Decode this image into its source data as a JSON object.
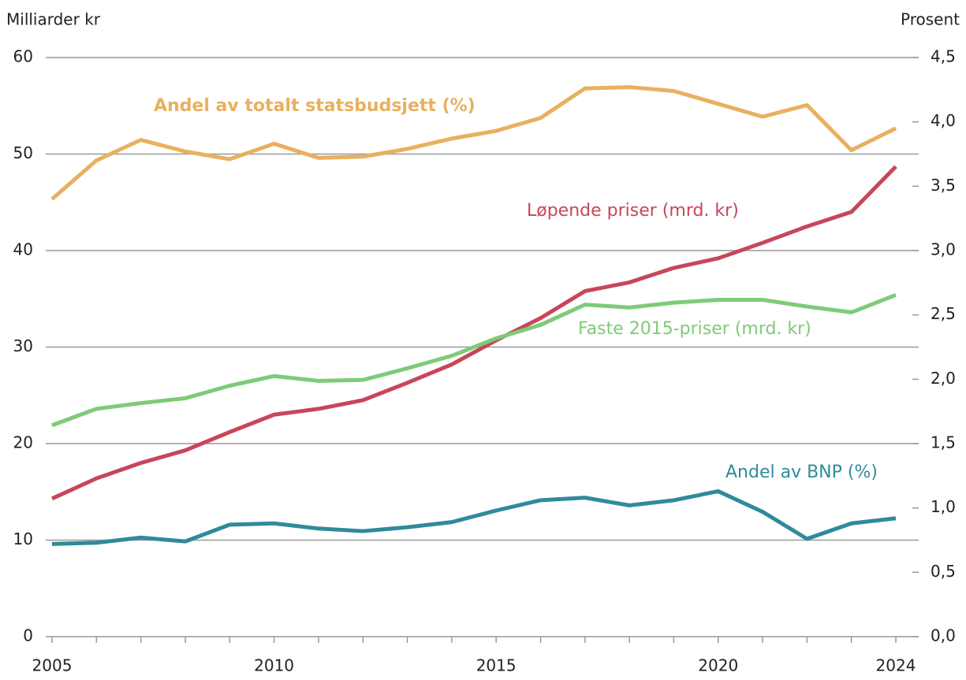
{
  "chart_data": {
    "type": "line",
    "ylabel": "Milliarder kr",
    "y2label": "Prosent",
    "x": [
      2005,
      2006,
      2007,
      2008,
      2009,
      2010,
      2011,
      2012,
      2013,
      2014,
      2015,
      2016,
      2017,
      2018,
      2019,
      2020,
      2021,
      2022,
      2023,
      2024
    ],
    "xlim": [
      2005,
      2024
    ],
    "xticks": [
      2005,
      2010,
      2015,
      2020,
      2024
    ],
    "ylim": [
      0,
      60
    ],
    "yticks": [
      0,
      10,
      20,
      30,
      40,
      50,
      60
    ],
    "y2lim": [
      0,
      4.5
    ],
    "y2ticks": [
      {
        "value": 0,
        "label": "0,0"
      },
      {
        "value": 0.5,
        "label": "0,5"
      },
      {
        "value": 1,
        "label": "1,0"
      },
      {
        "value": 1.5,
        "label": "1,5"
      },
      {
        "value": 2,
        "label": "2,0"
      },
      {
        "value": 2.5,
        "label": "2,5"
      },
      {
        "value": 3,
        "label": "3,0"
      },
      {
        "value": 3.5,
        "label": "3,5"
      },
      {
        "value": 4,
        "label": "4,0"
      },
      {
        "value": 4.5,
        "label": "4,5"
      }
    ],
    "grid": true,
    "series": [
      {
        "name": "Andel av totalt statsbudsjett (%)",
        "color": "#e8b060",
        "axis": "y2",
        "values": [
          3.4,
          3.7,
          3.86,
          3.77,
          3.71,
          3.83,
          3.72,
          3.73,
          3.79,
          3.87,
          3.93,
          4.03,
          4.26,
          4.27,
          4.24,
          4.14,
          4.04,
          4.13,
          3.78,
          3.95
        ]
      },
      {
        "name": "Løpende priser (mrd. kr)",
        "color": "#c8465a",
        "values": [
          14.3,
          16.4,
          18.0,
          19.3,
          21.2,
          23.0,
          23.6,
          24.5,
          26.3,
          28.2,
          30.7,
          33.0,
          35.8,
          36.7,
          38.2,
          39.2,
          40.8,
          42.5,
          44.0,
          48.7
        ]
      },
      {
        "name": "Faste 2015-priser (mrd. kr)",
        "color": "#7ecb77",
        "values": [
          21.9,
          23.6,
          24.2,
          24.7,
          26.0,
          27.0,
          26.5,
          26.6,
          27.8,
          29.1,
          30.9,
          32.3,
          34.4,
          34.1,
          34.6,
          34.9,
          34.9,
          34.2,
          33.6,
          35.4
        ]
      },
      {
        "name": "Andel av BNP (%)",
        "color": "#2e8b9a",
        "axis": "y2",
        "values": [
          0.72,
          0.73,
          0.77,
          0.74,
          0.87,
          0.88,
          0.84,
          0.82,
          0.85,
          0.89,
          0.98,
          1.06,
          1.08,
          1.02,
          1.06,
          1.13,
          0.97,
          0.76,
          0.88,
          0.92
        ]
      }
    ]
  }
}
